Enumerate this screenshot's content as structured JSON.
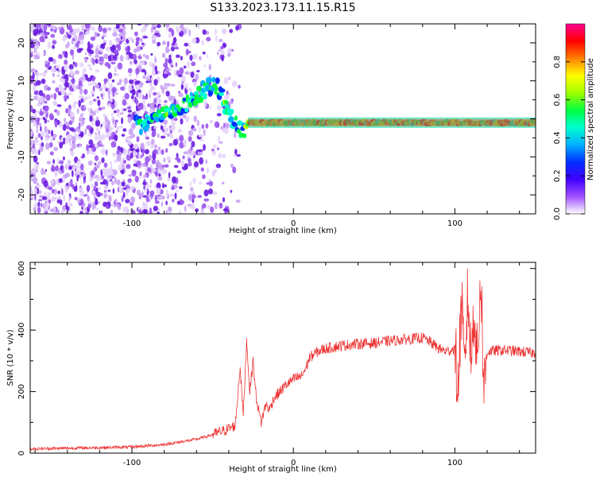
{
  "figure": {
    "title": "S133.2023.173.11.15.R15"
  },
  "chart_data": [
    {
      "type": "heatmap",
      "xlabel": "Height of straight line (km)",
      "ylabel": "Frequency (Hz)",
      "xlim": [
        -163,
        150
      ],
      "ylim": [
        -25,
        25
      ],
      "xticks": [
        -100,
        0,
        100
      ],
      "xtick_labels": [
        "-100",
        "0",
        "100"
      ],
      "yticks": [
        -20,
        -10,
        0,
        10,
        20
      ],
      "ytick_labels": [
        "-20",
        "-10",
        "0",
        "10",
        "20"
      ],
      "ridge": [
        {
          "x": -95,
          "y": -2
        },
        {
          "x": -80,
          "y": 2
        },
        {
          "x": -70,
          "y": 3
        },
        {
          "x": -60,
          "y": 6
        },
        {
          "x": -52,
          "y": 9
        },
        {
          "x": -46,
          "y": 8
        },
        {
          "x": -42,
          "y": 3
        },
        {
          "x": -36,
          "y": -1
        },
        {
          "x": -32,
          "y": -4
        },
        {
          "x": -28,
          "y": -1
        },
        {
          "x": -20,
          "y": -1
        },
        {
          "x": 0,
          "y": -1
        },
        {
          "x": 50,
          "y": -1
        },
        {
          "x": 100,
          "y": -1
        },
        {
          "x": 150,
          "y": -1
        }
      ],
      "colorbar": {
        "label": "Normalized spectral amplitude",
        "range": [
          0,
          1
        ],
        "ticks": [
          0.0,
          0.2,
          0.4,
          0.6,
          0.8
        ],
        "tick_labels": [
          "0.0",
          "0.2",
          "0.4",
          "0.6",
          "0.8"
        ],
        "colors": [
          "#ffffff",
          "#a050ff",
          "#4000ff",
          "#0030ff",
          "#00b0ff",
          "#00ffd0",
          "#00ff40",
          "#a0ff00",
          "#ffff00",
          "#ff8000",
          "#ff0000",
          "#ff0090"
        ]
      }
    },
    {
      "type": "line",
      "xlabel": "Height of straight line (km)",
      "ylabel": "SNR (10 * v/v)",
      "xlim": [
        -163,
        150
      ],
      "ylim": [
        0,
        620
      ],
      "xticks": [
        -100,
        0,
        100
      ],
      "xtick_labels": [
        "-100",
        "0",
        "100"
      ],
      "yticks": [
        0,
        200,
        400,
        600
      ],
      "ytick_labels": [
        "0",
        "200",
        "400",
        "600"
      ],
      "color": "#ee3333",
      "series": [
        {
          "x": [
            -163,
            -140,
            -120,
            -100,
            -80,
            -60,
            -50,
            -42,
            -36,
            -33,
            -31,
            -29,
            -27,
            -25,
            -23,
            -20,
            -17,
            -15,
            -12,
            -10,
            -5,
            0,
            5,
            8,
            10,
            15,
            20,
            25,
            30,
            40,
            50,
            60,
            70,
            80,
            85,
            90,
            95,
            100,
            102,
            104,
            106,
            108,
            110,
            112,
            114,
            116,
            118,
            120,
            130,
            140,
            150
          ],
          "values": [
            14,
            16,
            18,
            20,
            28,
            45,
            60,
            75,
            90,
            280,
            120,
            370,
            200,
            300,
            180,
            100,
            160,
            140,
            180,
            190,
            220,
            240,
            250,
            280,
            310,
            330,
            340,
            345,
            350,
            355,
            358,
            365,
            370,
            375,
            360,
            340,
            330,
            340,
            200,
            500,
            250,
            520,
            300,
            480,
            280,
            600,
            200,
            330,
            335,
            330,
            325
          ]
        }
      ]
    }
  ]
}
